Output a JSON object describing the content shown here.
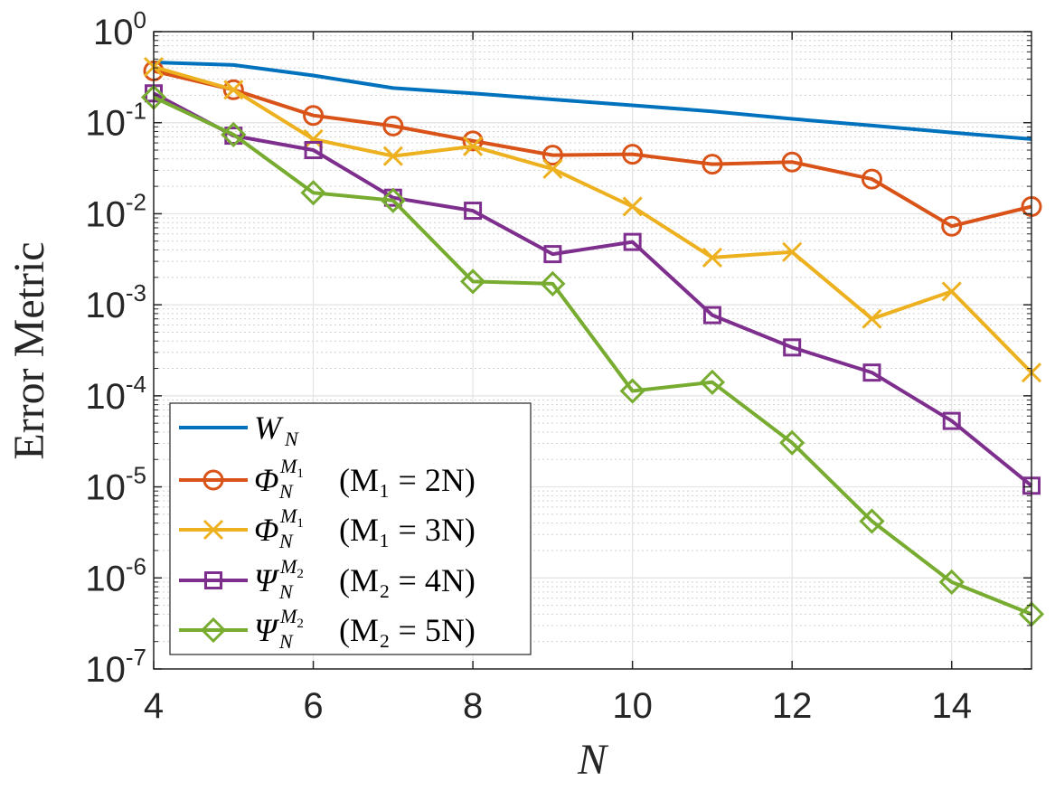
{
  "chart_data": {
    "type": "line",
    "yscale": "log",
    "xlabel": "N",
    "ylabel": "Error Metric",
    "xlim": [
      4,
      15
    ],
    "ylim": [
      1e-07,
      1
    ],
    "xticks": [
      {
        "value": 4,
        "label": "4"
      },
      {
        "value": 6,
        "label": "6"
      },
      {
        "value": 8,
        "label": "8"
      },
      {
        "value": 10,
        "label": "10"
      },
      {
        "value": 12,
        "label": "12"
      },
      {
        "value": 14,
        "label": "14"
      }
    ],
    "yticks": [
      {
        "value": 1,
        "base": "10",
        "exp": "0"
      },
      {
        "value": 0.1,
        "base": "10",
        "exp": "-1"
      },
      {
        "value": 0.01,
        "base": "10",
        "exp": "-2"
      },
      {
        "value": 0.001,
        "base": "10",
        "exp": "-3"
      },
      {
        "value": 0.0001,
        "base": "10",
        "exp": "-4"
      },
      {
        "value": 1e-05,
        "base": "10",
        "exp": "-5"
      },
      {
        "value": 1e-06,
        "base": "10",
        "exp": "-6"
      },
      {
        "value": 1e-07,
        "base": "10",
        "exp": "-7"
      }
    ],
    "grid": true,
    "legend_position": "bottom-left",
    "x": [
      4,
      5,
      6,
      7,
      8,
      9,
      10,
      11,
      12,
      13,
      14,
      15
    ],
    "series": [
      {
        "name": "W_N",
        "legend": {
          "sym": "W",
          "sub": "N",
          "sup": "",
          "supsub": "",
          "rest": ""
        },
        "color": "#0072BD",
        "marker": "none",
        "values": [
          0.46,
          0.43,
          0.33,
          0.24,
          0.21,
          0.18,
          0.155,
          0.133,
          0.11,
          0.093,
          0.078,
          0.066
        ]
      },
      {
        "name": "Phi_N^{M1} (M1 = 2N)",
        "legend": {
          "sym": "Φ",
          "sub": "N",
          "sup": "M",
          "supsub": "1",
          "rest": "(M₁ = 2N)"
        },
        "color": "#D95319",
        "marker": "circle",
        "values": [
          0.37,
          0.23,
          0.12,
          0.092,
          0.063,
          0.044,
          0.045,
          0.035,
          0.037,
          0.024,
          0.0073,
          0.012
        ]
      },
      {
        "name": "Phi_N^{M1} (M1 = 3N)",
        "legend": {
          "sym": "Φ",
          "sub": "N",
          "sup": "M",
          "supsub": "1",
          "rest": "(M₁ = 3N)"
        },
        "color": "#EDB120",
        "marker": "x",
        "values": [
          0.41,
          0.23,
          0.066,
          0.043,
          0.055,
          0.031,
          0.012,
          0.0033,
          0.0038,
          0.0007,
          0.0014,
          0.00018
        ]
      },
      {
        "name": "Psi_N^{M2} (M2 = 4N)",
        "legend": {
          "sym": "Ψ",
          "sub": "N",
          "sup": "M",
          "supsub": "2",
          "rest": "(M₂ = 4N)"
        },
        "color": "#7E2F8E",
        "marker": "square",
        "values": [
          0.21,
          0.072,
          0.05,
          0.015,
          0.0108,
          0.0036,
          0.0049,
          0.00077,
          0.00034,
          0.00018,
          5.3e-05,
          1.03e-05
        ]
      },
      {
        "name": "Psi_N^{M2} (M2 = 5N)",
        "legend": {
          "sym": "Ψ",
          "sub": "N",
          "sup": "M",
          "supsub": "2",
          "rest": "(M₂ = 5N)"
        },
        "color": "#77AC30",
        "marker": "diamond",
        "values": [
          0.19,
          0.074,
          0.017,
          0.014,
          0.0018,
          0.0017,
          0.000113,
          0.000141,
          3.05e-05,
          4.2e-06,
          9e-07,
          4e-07
        ]
      }
    ]
  }
}
